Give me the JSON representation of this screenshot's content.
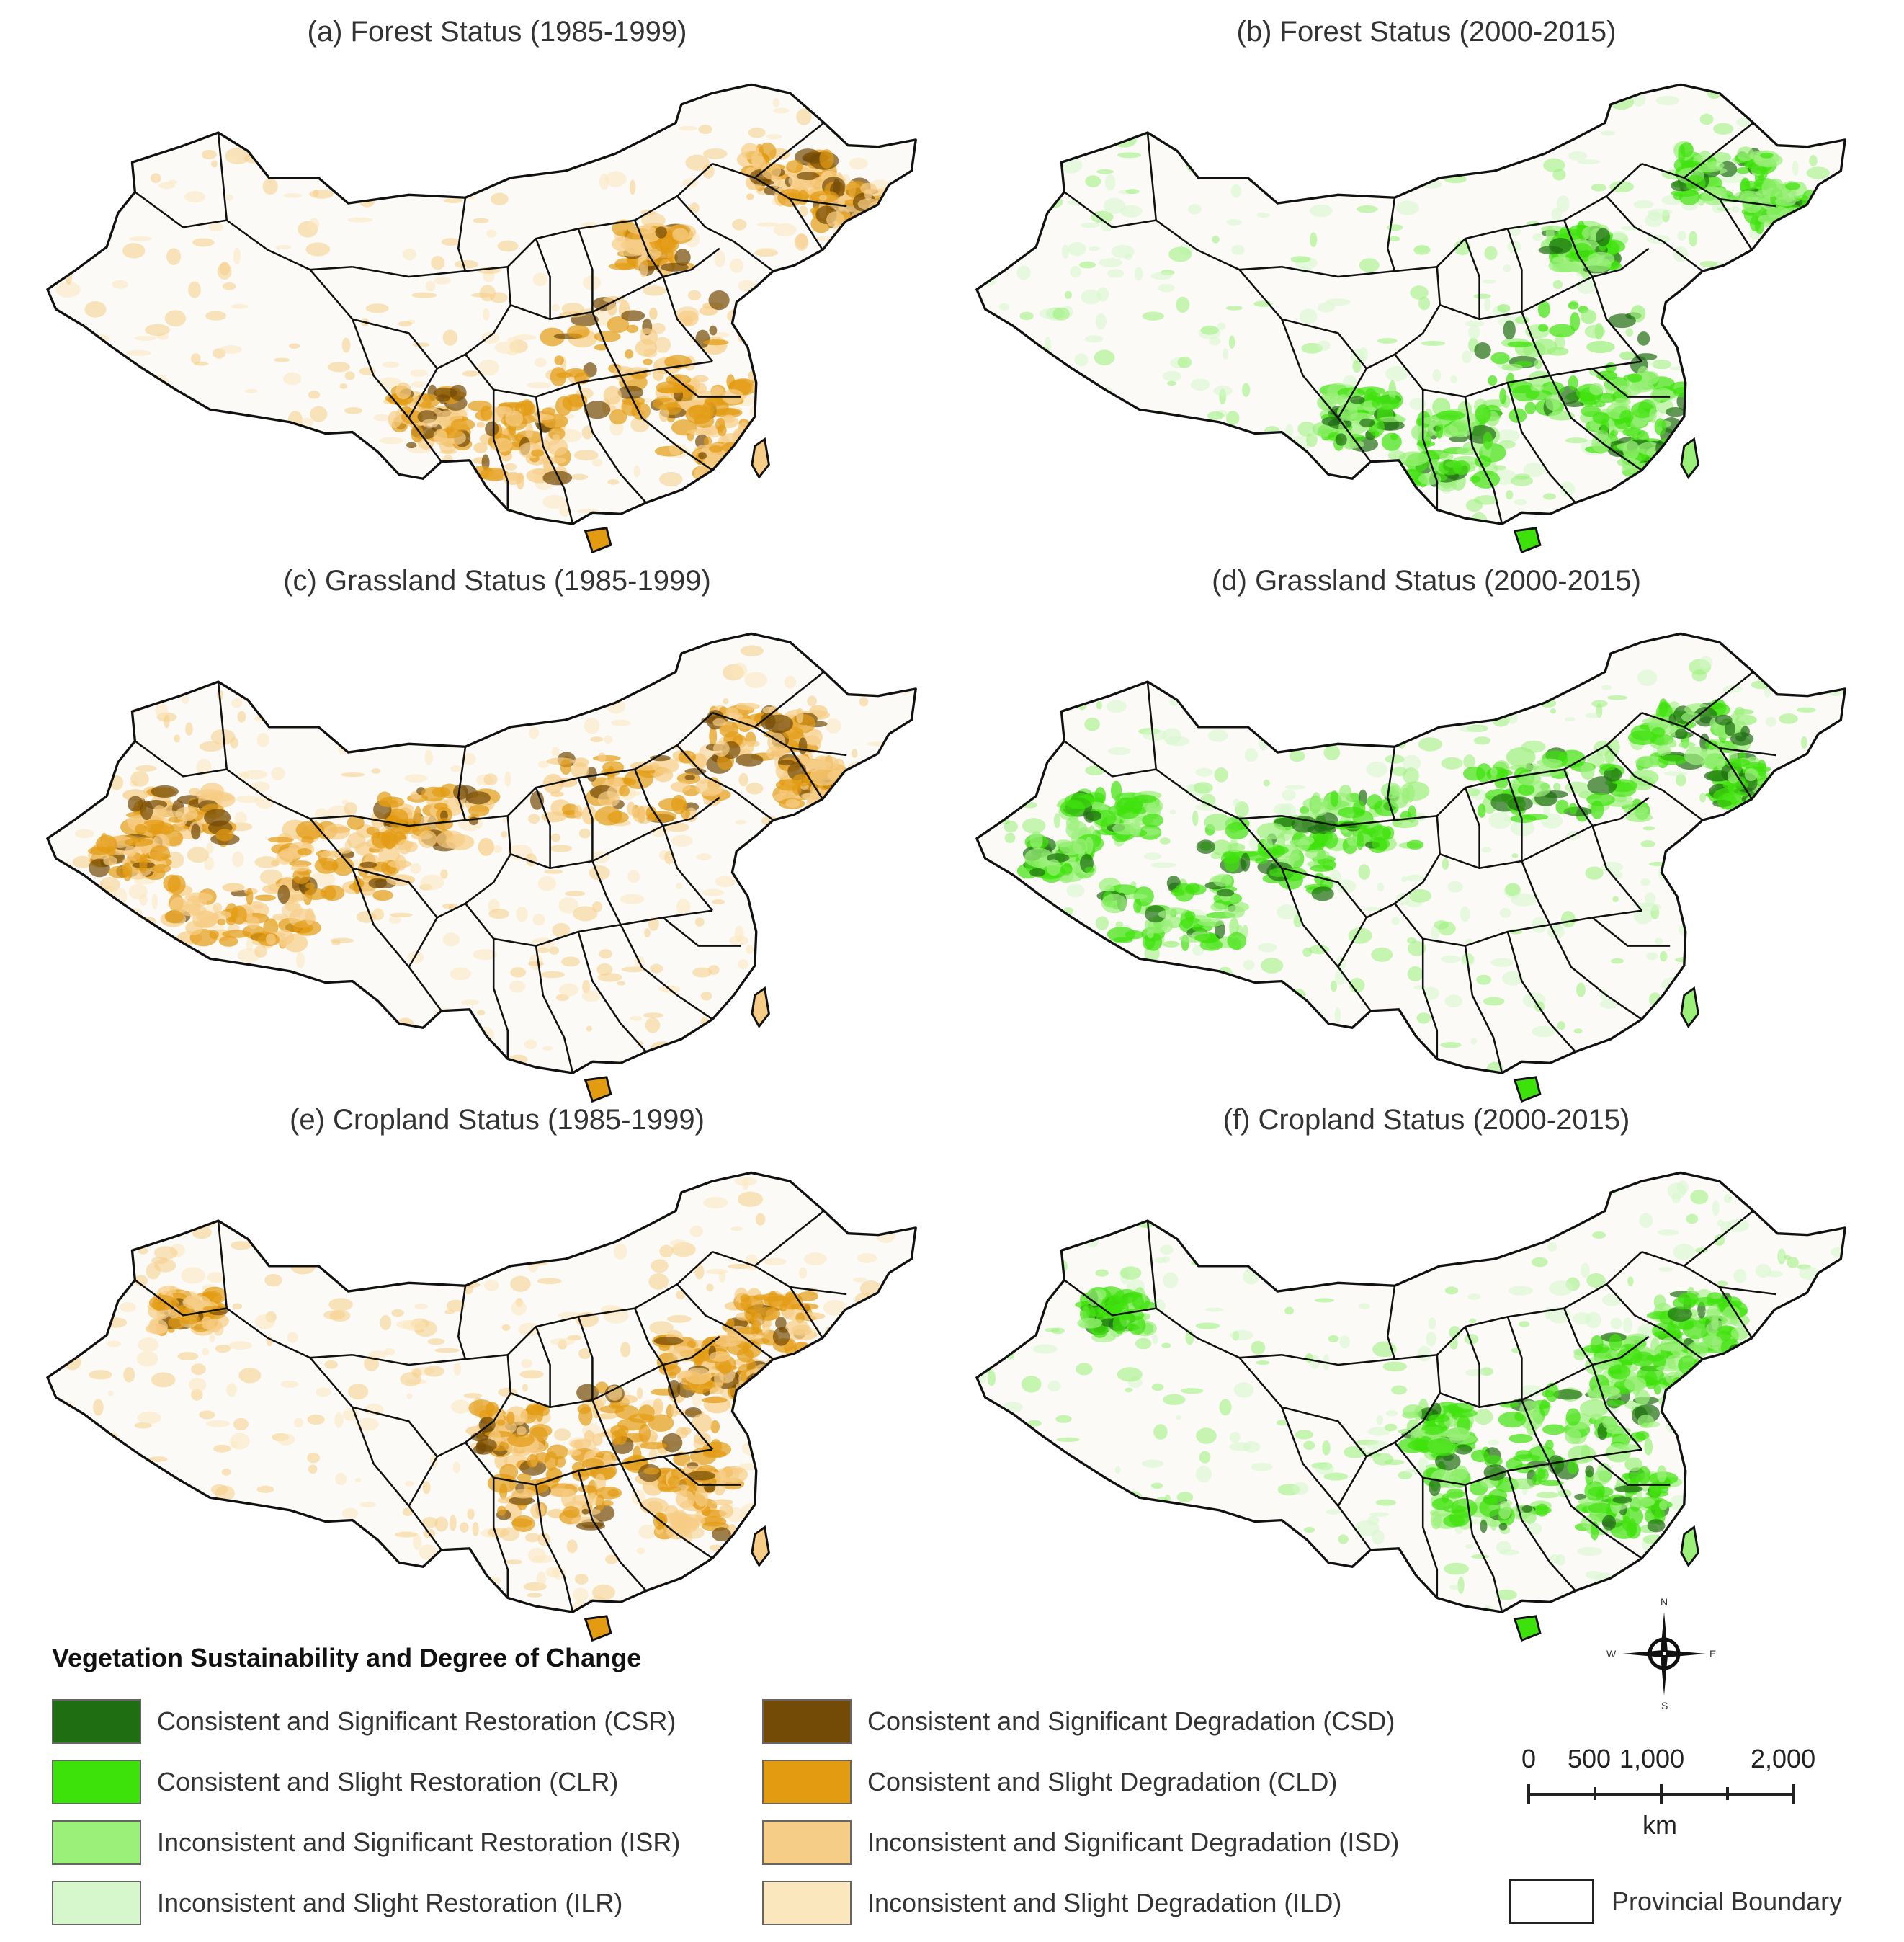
{
  "panels": [
    {
      "id": "a",
      "title": "(a) Forest Status (1985-1999)",
      "theme": "degradation",
      "focus": "forest"
    },
    {
      "id": "b",
      "title": "(b) Forest Status (2000-2015)",
      "theme": "restoration",
      "focus": "forest"
    },
    {
      "id": "c",
      "title": "(c) Grassland Status (1985-1999)",
      "theme": "degradation",
      "focus": "grass"
    },
    {
      "id": "d",
      "title": "(d) Grassland Status (2000-2015)",
      "theme": "restoration",
      "focus": "grass"
    },
    {
      "id": "e",
      "title": "(e) Cropland Status (1985-1999)",
      "theme": "degradation",
      "focus": "crop"
    },
    {
      "id": "f",
      "title": "(f) Cropland Status (2000-2015)",
      "theme": "restoration",
      "focus": "crop"
    }
  ],
  "legend": {
    "title": "Vegetation Sustainability and Degree of Change",
    "restoration": [
      {
        "label": "Consistent and Significant Restoration (CSR)",
        "color": "#1f6e12"
      },
      {
        "label": "Consistent and Slight Restoration (CLR)",
        "color": "#3ee20b"
      },
      {
        "label": "Inconsistent and Significant Restoration (ISR)",
        "color": "#9bf07a"
      },
      {
        "label": "Inconsistent and Slight Restoration (ILR)",
        "color": "#d6f7cc"
      }
    ],
    "degradation": [
      {
        "label": "Consistent and Significant Degradation (CSD)",
        "color": "#734a06"
      },
      {
        "label": "Consistent and Slight Degradation (CLD)",
        "color": "#e39b12"
      },
      {
        "label": "Inconsistent and Significant Degradation (ISD)",
        "color": "#f6cd86"
      },
      {
        "label": "Inconsistent and Slight Degradation (ILD)",
        "color": "#fbe7bd"
      }
    ]
  },
  "scale_bar": {
    "ticks": [
      "0",
      "500",
      "1,000",
      "2,000"
    ],
    "unit": "km"
  },
  "compass": {
    "n": "N",
    "s": "S",
    "e": "E",
    "w": "W"
  },
  "boundary_legend": {
    "label": "Provincial Boundary"
  }
}
